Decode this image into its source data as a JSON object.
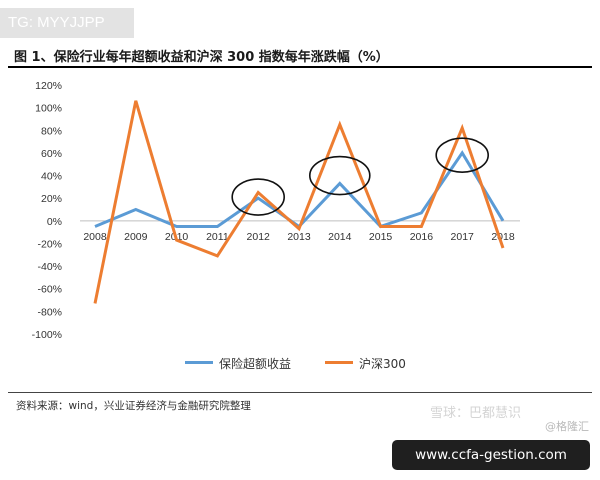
{
  "tag": "TG: MYYJJPP",
  "title": "图 1、保险行业每年超额收益和沪深 300 指数每年涨跌幅（%）",
  "source": "资料来源：wind，兴业证券经济与金融研究院整理",
  "watermark": "雪球：巴都慧识",
  "watermark_user": "@格隆汇",
  "url_badge": "www.ccfa-gestion.com",
  "colors": {
    "blue": "#5b9bd5",
    "orange": "#ed7d31"
  },
  "chart_data": {
    "type": "line",
    "x": [
      "2008",
      "2009",
      "2010",
      "2011",
      "2012",
      "2013",
      "2014",
      "2015",
      "2016",
      "2017",
      "2018"
    ],
    "series": [
      {
        "name": "保险超额收益",
        "values": [
          -5,
          10,
          -5,
          -5,
          20,
          -5,
          33,
          -5,
          7,
          60,
          0
        ]
      },
      {
        "name": "沪深300",
        "values": [
          -73,
          106,
          -17,
          -31,
          25,
          -7,
          85,
          -5,
          -5,
          82,
          -24
        ]
      }
    ],
    "ylim": [
      -100,
      120
    ],
    "yticks": [
      "120%",
      "100%",
      "80%",
      "60%",
      "40%",
      "20%",
      "0%",
      "-20%",
      "-40%",
      "-60%",
      "-80%",
      "-100%"
    ],
    "grid": false,
    "legend": "bottom"
  }
}
